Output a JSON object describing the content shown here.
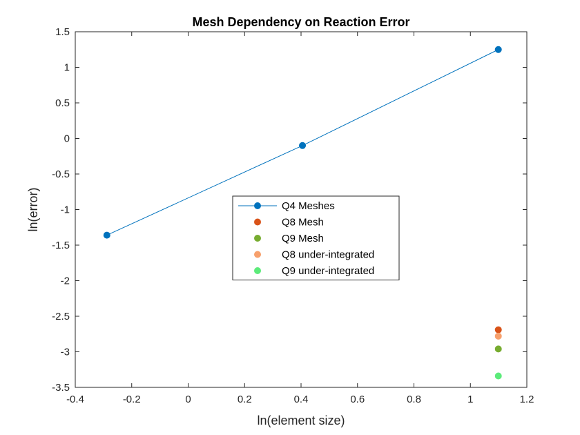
{
  "chart_data": {
    "type": "scatter",
    "title": "Mesh Dependency on Reaction Error",
    "xlabel": "ln(element size)",
    "ylabel": "ln(error)",
    "xlim": [
      -0.4,
      1.2
    ],
    "ylim": [
      -3.5,
      1.5
    ],
    "xticks": [
      -0.4,
      -0.2,
      0,
      0.2,
      0.4,
      0.6,
      0.8,
      1,
      1.2
    ],
    "yticks": [
      -3.5,
      -3,
      -2.5,
      -2,
      -1.5,
      -1,
      -0.5,
      0,
      0.5,
      1,
      1.5
    ],
    "xtick_labels": [
      "-0.4",
      "-0.2",
      "0",
      "0.2",
      "0.4",
      "0.6",
      "0.8",
      "1",
      "1.2"
    ],
    "ytick_labels": [
      "-3.5",
      "-3",
      "-2.5",
      "-2",
      "-1.5",
      "-1",
      "-0.5",
      "0",
      "0.5",
      "1",
      "1.5"
    ],
    "grid": false,
    "legend_position": "center",
    "series": [
      {
        "name": "Q4 Meshes",
        "color": "#0072bd",
        "line": true,
        "x": [
          -0.288,
          0.405,
          1.099
        ],
        "y": [
          -1.36,
          -0.1,
          1.25
        ]
      },
      {
        "name": "Q8 Mesh",
        "color": "#d95319",
        "line": false,
        "x": [
          1.099
        ],
        "y": [
          -2.69
        ]
      },
      {
        "name": "Q9 Mesh",
        "color": "#77ac30",
        "line": false,
        "x": [
          1.099
        ],
        "y": [
          -2.96
        ]
      },
      {
        "name": "Q8 under-integrated",
        "color": "#f7a06c",
        "line": false,
        "x": [
          1.099
        ],
        "y": [
          -2.78
        ]
      },
      {
        "name": "Q9 under-integrated",
        "color": "#5ceb7a",
        "line": false,
        "x": [
          1.099
        ],
        "y": [
          -3.34
        ]
      }
    ]
  }
}
